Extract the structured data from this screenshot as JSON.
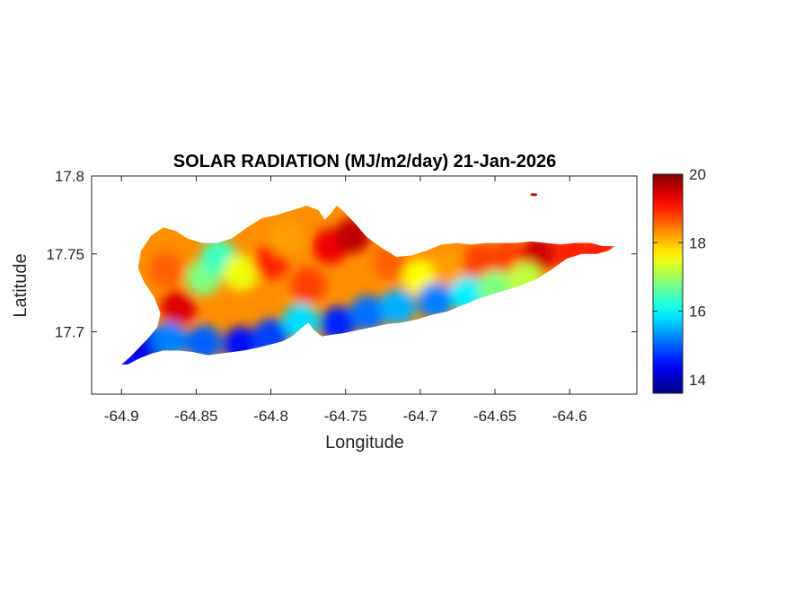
{
  "chart_data": {
    "type": "heatmap",
    "title": "SOLAR RADIATION (MJ/m2/day) 21-Jan-2026",
    "xlabel": "Longitude",
    "ylabel": "Latitude",
    "xlim": [
      -64.92,
      -64.555
    ],
    "ylim": [
      17.66,
      17.8
    ],
    "x_ticks": [
      {
        "value": -64.9,
        "label": "-64.9"
      },
      {
        "value": -64.85,
        "label": "-64.85"
      },
      {
        "value": -64.8,
        "label": "-64.8"
      },
      {
        "value": -64.75,
        "label": "-64.75"
      },
      {
        "value": -64.7,
        "label": "-64.7"
      },
      {
        "value": -64.65,
        "label": "-64.65"
      },
      {
        "value": -64.6,
        "label": "-64.6"
      }
    ],
    "y_ticks": [
      {
        "value": 17.8,
        "label": "17.8"
      },
      {
        "value": 17.75,
        "label": "17.75"
      },
      {
        "value": 17.7,
        "label": "17.7"
      }
    ],
    "colorbar": {
      "colormap": "jet",
      "range": [
        13.6,
        20
      ],
      "ticks": [
        {
          "value": 20,
          "label": "20"
        },
        {
          "value": 18,
          "label": "18"
        },
        {
          "value": 16,
          "label": "16"
        },
        {
          "value": 14,
          "label": "14"
        }
      ]
    },
    "island_outline": [
      [
        -64.9,
        17.679
      ],
      [
        -64.894,
        17.684
      ],
      [
        -64.888,
        17.69
      ],
      [
        -64.882,
        17.696
      ],
      [
        -64.876,
        17.703
      ],
      [
        -64.874,
        17.712
      ],
      [
        -64.878,
        17.722
      ],
      [
        -64.885,
        17.732
      ],
      [
        -64.889,
        17.741
      ],
      [
        -64.887,
        17.752
      ],
      [
        -64.88,
        17.762
      ],
      [
        -64.872,
        17.767
      ],
      [
        -64.864,
        17.765
      ],
      [
        -64.856,
        17.76
      ],
      [
        -64.846,
        17.757
      ],
      [
        -64.836,
        17.757
      ],
      [
        -64.826,
        17.76
      ],
      [
        -64.816,
        17.767
      ],
      [
        -64.806,
        17.773
      ],
      [
        -64.796,
        17.775
      ],
      [
        -64.786,
        17.778
      ],
      [
        -64.776,
        17.781
      ],
      [
        -64.768,
        17.778
      ],
      [
        -64.764,
        17.772
      ],
      [
        -64.76,
        17.776
      ],
      [
        -64.756,
        17.781
      ],
      [
        -64.752,
        17.778
      ],
      [
        -64.744,
        17.77
      ],
      [
        -64.736,
        17.761
      ],
      [
        -64.726,
        17.754
      ],
      [
        -64.716,
        17.748
      ],
      [
        -64.706,
        17.749
      ],
      [
        -64.696,
        17.752
      ],
      [
        -64.686,
        17.756
      ],
      [
        -64.676,
        17.757
      ],
      [
        -64.666,
        17.756
      ],
      [
        -64.656,
        17.757
      ],
      [
        -64.646,
        17.757
      ],
      [
        -64.636,
        17.757
      ],
      [
        -64.626,
        17.758
      ],
      [
        -64.616,
        17.757
      ],
      [
        -64.606,
        17.756
      ],
      [
        -64.596,
        17.757
      ],
      [
        -64.586,
        17.757
      ],
      [
        -64.578,
        17.755
      ],
      [
        -64.57,
        17.755
      ],
      [
        -64.574,
        17.752
      ],
      [
        -64.582,
        17.75
      ],
      [
        -64.592,
        17.75
      ],
      [
        -64.602,
        17.747
      ],
      [
        -64.612,
        17.74
      ],
      [
        -64.622,
        17.734
      ],
      [
        -64.632,
        17.73
      ],
      [
        -64.642,
        17.727
      ],
      [
        -64.652,
        17.724
      ],
      [
        -64.662,
        17.721
      ],
      [
        -64.672,
        17.717
      ],
      [
        -64.682,
        17.713
      ],
      [
        -64.692,
        17.711
      ],
      [
        -64.702,
        17.708
      ],
      [
        -64.712,
        17.706
      ],
      [
        -64.722,
        17.705
      ],
      [
        -64.732,
        17.703
      ],
      [
        -64.742,
        17.701
      ],
      [
        -64.752,
        17.699
      ],
      [
        -64.76,
        17.698
      ],
      [
        -64.766,
        17.697
      ],
      [
        -64.771,
        17.701
      ],
      [
        -64.775,
        17.706
      ],
      [
        -64.78,
        17.702
      ],
      [
        -64.786,
        17.697
      ],
      [
        -64.792,
        17.694
      ],
      [
        -64.8,
        17.692
      ],
      [
        -64.808,
        17.69
      ],
      [
        -64.818,
        17.688
      ],
      [
        -64.826,
        17.687
      ],
      [
        -64.834,
        17.686
      ],
      [
        -64.842,
        17.685
      ],
      [
        -64.852,
        17.687
      ],
      [
        -64.862,
        17.688
      ],
      [
        -64.872,
        17.688
      ],
      [
        -64.88,
        17.686
      ],
      [
        -64.888,
        17.683
      ],
      [
        -64.896,
        17.679
      ]
    ],
    "islet": {
      "lon": -64.624,
      "lat": 17.788
    },
    "field_values": [
      {
        "lon": -64.87,
        "lat": 17.74,
        "value": 18.6
      },
      {
        "lon": -64.862,
        "lat": 17.715,
        "value": 19.4
      },
      {
        "lon": -64.845,
        "lat": 17.735,
        "value": 16.8
      },
      {
        "lon": -64.835,
        "lat": 17.748,
        "value": 16.4
      },
      {
        "lon": -64.82,
        "lat": 17.738,
        "value": 17.5
      },
      {
        "lon": -64.8,
        "lat": 17.745,
        "value": 19.0
      },
      {
        "lon": -64.79,
        "lat": 17.76,
        "value": 18.2
      },
      {
        "lon": -64.775,
        "lat": 17.73,
        "value": 18.8
      },
      {
        "lon": -64.76,
        "lat": 17.755,
        "value": 19.3
      },
      {
        "lon": -64.745,
        "lat": 17.762,
        "value": 19.6
      },
      {
        "lon": -64.72,
        "lat": 17.745,
        "value": 18.6
      },
      {
        "lon": -64.7,
        "lat": 17.735,
        "value": 17.6
      },
      {
        "lon": -64.68,
        "lat": 17.74,
        "value": 18.2
      },
      {
        "lon": -64.66,
        "lat": 17.745,
        "value": 18.8
      },
      {
        "lon": -64.64,
        "lat": 17.748,
        "value": 18.8
      },
      {
        "lon": -64.62,
        "lat": 17.75,
        "value": 19.5
      },
      {
        "lon": -64.6,
        "lat": 17.752,
        "value": 19.0
      },
      {
        "lon": -64.58,
        "lat": 17.753,
        "value": 19.0
      },
      {
        "lon": -64.893,
        "lat": 17.684,
        "value": 14.5
      },
      {
        "lon": -64.882,
        "lat": 17.692,
        "value": 14.2
      },
      {
        "lon": -64.868,
        "lat": 17.695,
        "value": 15.2
      },
      {
        "lon": -64.845,
        "lat": 17.693,
        "value": 15.0
      },
      {
        "lon": -64.82,
        "lat": 17.692,
        "value": 14.5
      },
      {
        "lon": -64.8,
        "lat": 17.697,
        "value": 14.8
      },
      {
        "lon": -64.78,
        "lat": 17.707,
        "value": 15.8
      },
      {
        "lon": -64.755,
        "lat": 17.705,
        "value": 14.6
      },
      {
        "lon": -64.735,
        "lat": 17.712,
        "value": 15.1
      },
      {
        "lon": -64.715,
        "lat": 17.716,
        "value": 15.5
      },
      {
        "lon": -64.69,
        "lat": 17.72,
        "value": 15.2
      },
      {
        "lon": -64.668,
        "lat": 17.724,
        "value": 15.9
      },
      {
        "lon": -64.65,
        "lat": 17.728,
        "value": 16.8
      },
      {
        "lon": -64.63,
        "lat": 17.733,
        "value": 17.2
      }
    ]
  }
}
